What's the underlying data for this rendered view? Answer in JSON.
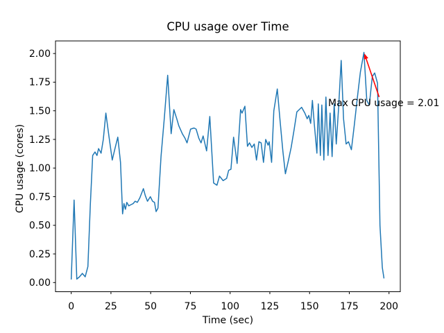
{
  "figure": {
    "title": "CPU usage over Time",
    "background": "#ffffff"
  },
  "axes": {
    "xlabel": "Time (sec)",
    "ylabel": "CPU usage (cores)",
    "x_tick_labels": [
      "0",
      "25",
      "50",
      "75",
      "100",
      "125",
      "150",
      "175",
      "200"
    ],
    "x_tick_values": [
      0,
      25,
      50,
      75,
      100,
      125,
      150,
      175,
      200
    ],
    "y_tick_labels": [
      "0.00",
      "0.25",
      "0.50",
      "0.75",
      "1.00",
      "1.25",
      "1.50",
      "1.75",
      "2.00"
    ],
    "y_tick_values": [
      0,
      0.25,
      0.5,
      0.75,
      1.0,
      1.25,
      1.5,
      1.75,
      2.0
    ],
    "frame_color": "#000000",
    "tick_color": "#000000"
  },
  "annotation": {
    "text": "Max CPU usage = 2.01",
    "color": "#ff0000",
    "max_value": 2.01,
    "target_xy": [
      184.5,
      2.0
    ],
    "arrow_tail_xy": [
      193.8,
      1.62
    ]
  },
  "chart_data": {
    "type": "line",
    "title": "CPU usage over Time",
    "xlabel": "Time (sec)",
    "ylabel": "CPU usage (cores)",
    "grid": false,
    "legend_position": "none",
    "xlim": [
      -9.9,
      207.1
    ],
    "ylim": [
      -0.08,
      2.11
    ],
    "line_color": "#1f77b4",
    "annotation_color": "#ff0000",
    "series": [
      {
        "name": "CPU usage (cores)",
        "points": [
          [
            0,
            0.03
          ],
          [
            1.8,
            0.72
          ],
          [
            3.5,
            0.03
          ],
          [
            5.2,
            0.05
          ],
          [
            7,
            0.08
          ],
          [
            8.8,
            0.05
          ],
          [
            10.5,
            0.14
          ],
          [
            12,
            0.68
          ],
          [
            13.5,
            1.11
          ],
          [
            15,
            1.14
          ],
          [
            16.2,
            1.11
          ],
          [
            17.2,
            1.17
          ],
          [
            18.8,
            1.13
          ],
          [
            20.2,
            1.25
          ],
          [
            21.8,
            1.48
          ],
          [
            23.8,
            1.27
          ],
          [
            25.8,
            1.07
          ],
          [
            27.5,
            1.17
          ],
          [
            29.3,
            1.27
          ],
          [
            31,
            1.05
          ],
          [
            32.3,
            0.6
          ],
          [
            33.2,
            0.69
          ],
          [
            34.1,
            0.64
          ],
          [
            35,
            0.7
          ],
          [
            36.2,
            0.67
          ],
          [
            37.6,
            0.68
          ],
          [
            39,
            0.69
          ],
          [
            40.2,
            0.71
          ],
          [
            41.6,
            0.7
          ],
          [
            43.2,
            0.74
          ],
          [
            45.4,
            0.82
          ],
          [
            46.6,
            0.76
          ],
          [
            48,
            0.71
          ],
          [
            49.8,
            0.75
          ],
          [
            51.2,
            0.71
          ],
          [
            52.4,
            0.7
          ],
          [
            53.4,
            0.62
          ],
          [
            54.6,
            0.65
          ],
          [
            56.5,
            1.1
          ],
          [
            58.6,
            1.44
          ],
          [
            60.7,
            1.81
          ],
          [
            62.9,
            1.3
          ],
          [
            64.6,
            1.51
          ],
          [
            66.4,
            1.43
          ],
          [
            67.7,
            1.37
          ],
          [
            69.9,
            1.3
          ],
          [
            71.6,
            1.26
          ],
          [
            72.9,
            1.22
          ],
          [
            75.1,
            1.34
          ],
          [
            77.3,
            1.35
          ],
          [
            78.6,
            1.34
          ],
          [
            80.3,
            1.26
          ],
          [
            81.7,
            1.22
          ],
          [
            83,
            1.28
          ],
          [
            85.2,
            1.15
          ],
          [
            87.2,
            1.45
          ],
          [
            89.6,
            0.87
          ],
          [
            91.7,
            0.85
          ],
          [
            93.3,
            0.93
          ],
          [
            95.6,
            0.89
          ],
          [
            97.8,
            0.91
          ],
          [
            99.1,
            0.98
          ],
          [
            100.5,
            0.99
          ],
          [
            102.2,
            1.27
          ],
          [
            104.4,
            1.04
          ],
          [
            106.6,
            1.51
          ],
          [
            107.5,
            1.48
          ],
          [
            109.3,
            1.54
          ],
          [
            110.9,
            1.19
          ],
          [
            112.2,
            1.22
          ],
          [
            113.7,
            1.18
          ],
          [
            115.2,
            1.21
          ],
          [
            116.6,
            1.07
          ],
          [
            118.1,
            1.23
          ],
          [
            119.5,
            1.22
          ],
          [
            121,
            1.05
          ],
          [
            122.4,
            1.25
          ],
          [
            123.9,
            1.2
          ],
          [
            124.6,
            1.23
          ],
          [
            126.1,
            1.05
          ],
          [
            127.5,
            1.5
          ],
          [
            129.7,
            1.69
          ],
          [
            131.5,
            1.4
          ],
          [
            133.2,
            1.15
          ],
          [
            134.8,
            0.95
          ],
          [
            136.6,
            1.06
          ],
          [
            138.4,
            1.18
          ],
          [
            140.2,
            1.33
          ],
          [
            142,
            1.49
          ],
          [
            143.5,
            1.51
          ],
          [
            145,
            1.53
          ],
          [
            147,
            1.48
          ],
          [
            148.5,
            1.43
          ],
          [
            149.5,
            1.46
          ],
          [
            150.7,
            1.39
          ],
          [
            151.8,
            1.59
          ],
          [
            153,
            1.38
          ],
          [
            154.6,
            1.13
          ],
          [
            155.5,
            1.56
          ],
          [
            156.8,
            1.11
          ],
          [
            157.7,
            1.55
          ],
          [
            159,
            1.07
          ],
          [
            160.3,
            1.62
          ],
          [
            161.6,
            1.11
          ],
          [
            162.9,
            1.48
          ],
          [
            164.2,
            1.1
          ],
          [
            165.5,
            1.56
          ],
          [
            166.8,
            1.21
          ],
          [
            168.2,
            1.51
          ],
          [
            169.9,
            1.94
          ],
          [
            171.4,
            1.43
          ],
          [
            173,
            1.21
          ],
          [
            174.5,
            1.23
          ],
          [
            176.3,
            1.16
          ],
          [
            178.2,
            1.38
          ],
          [
            180.1,
            1.62
          ],
          [
            182,
            1.84
          ],
          [
            184.2,
            2.01
          ],
          [
            186,
            1.59
          ],
          [
            187.6,
            1.55
          ],
          [
            189.5,
            1.8
          ],
          [
            191,
            1.83
          ],
          [
            192.8,
            1.74
          ],
          [
            194.3,
            0.5
          ],
          [
            195.8,
            0.13
          ],
          [
            196.8,
            0.04
          ]
        ]
      }
    ]
  }
}
